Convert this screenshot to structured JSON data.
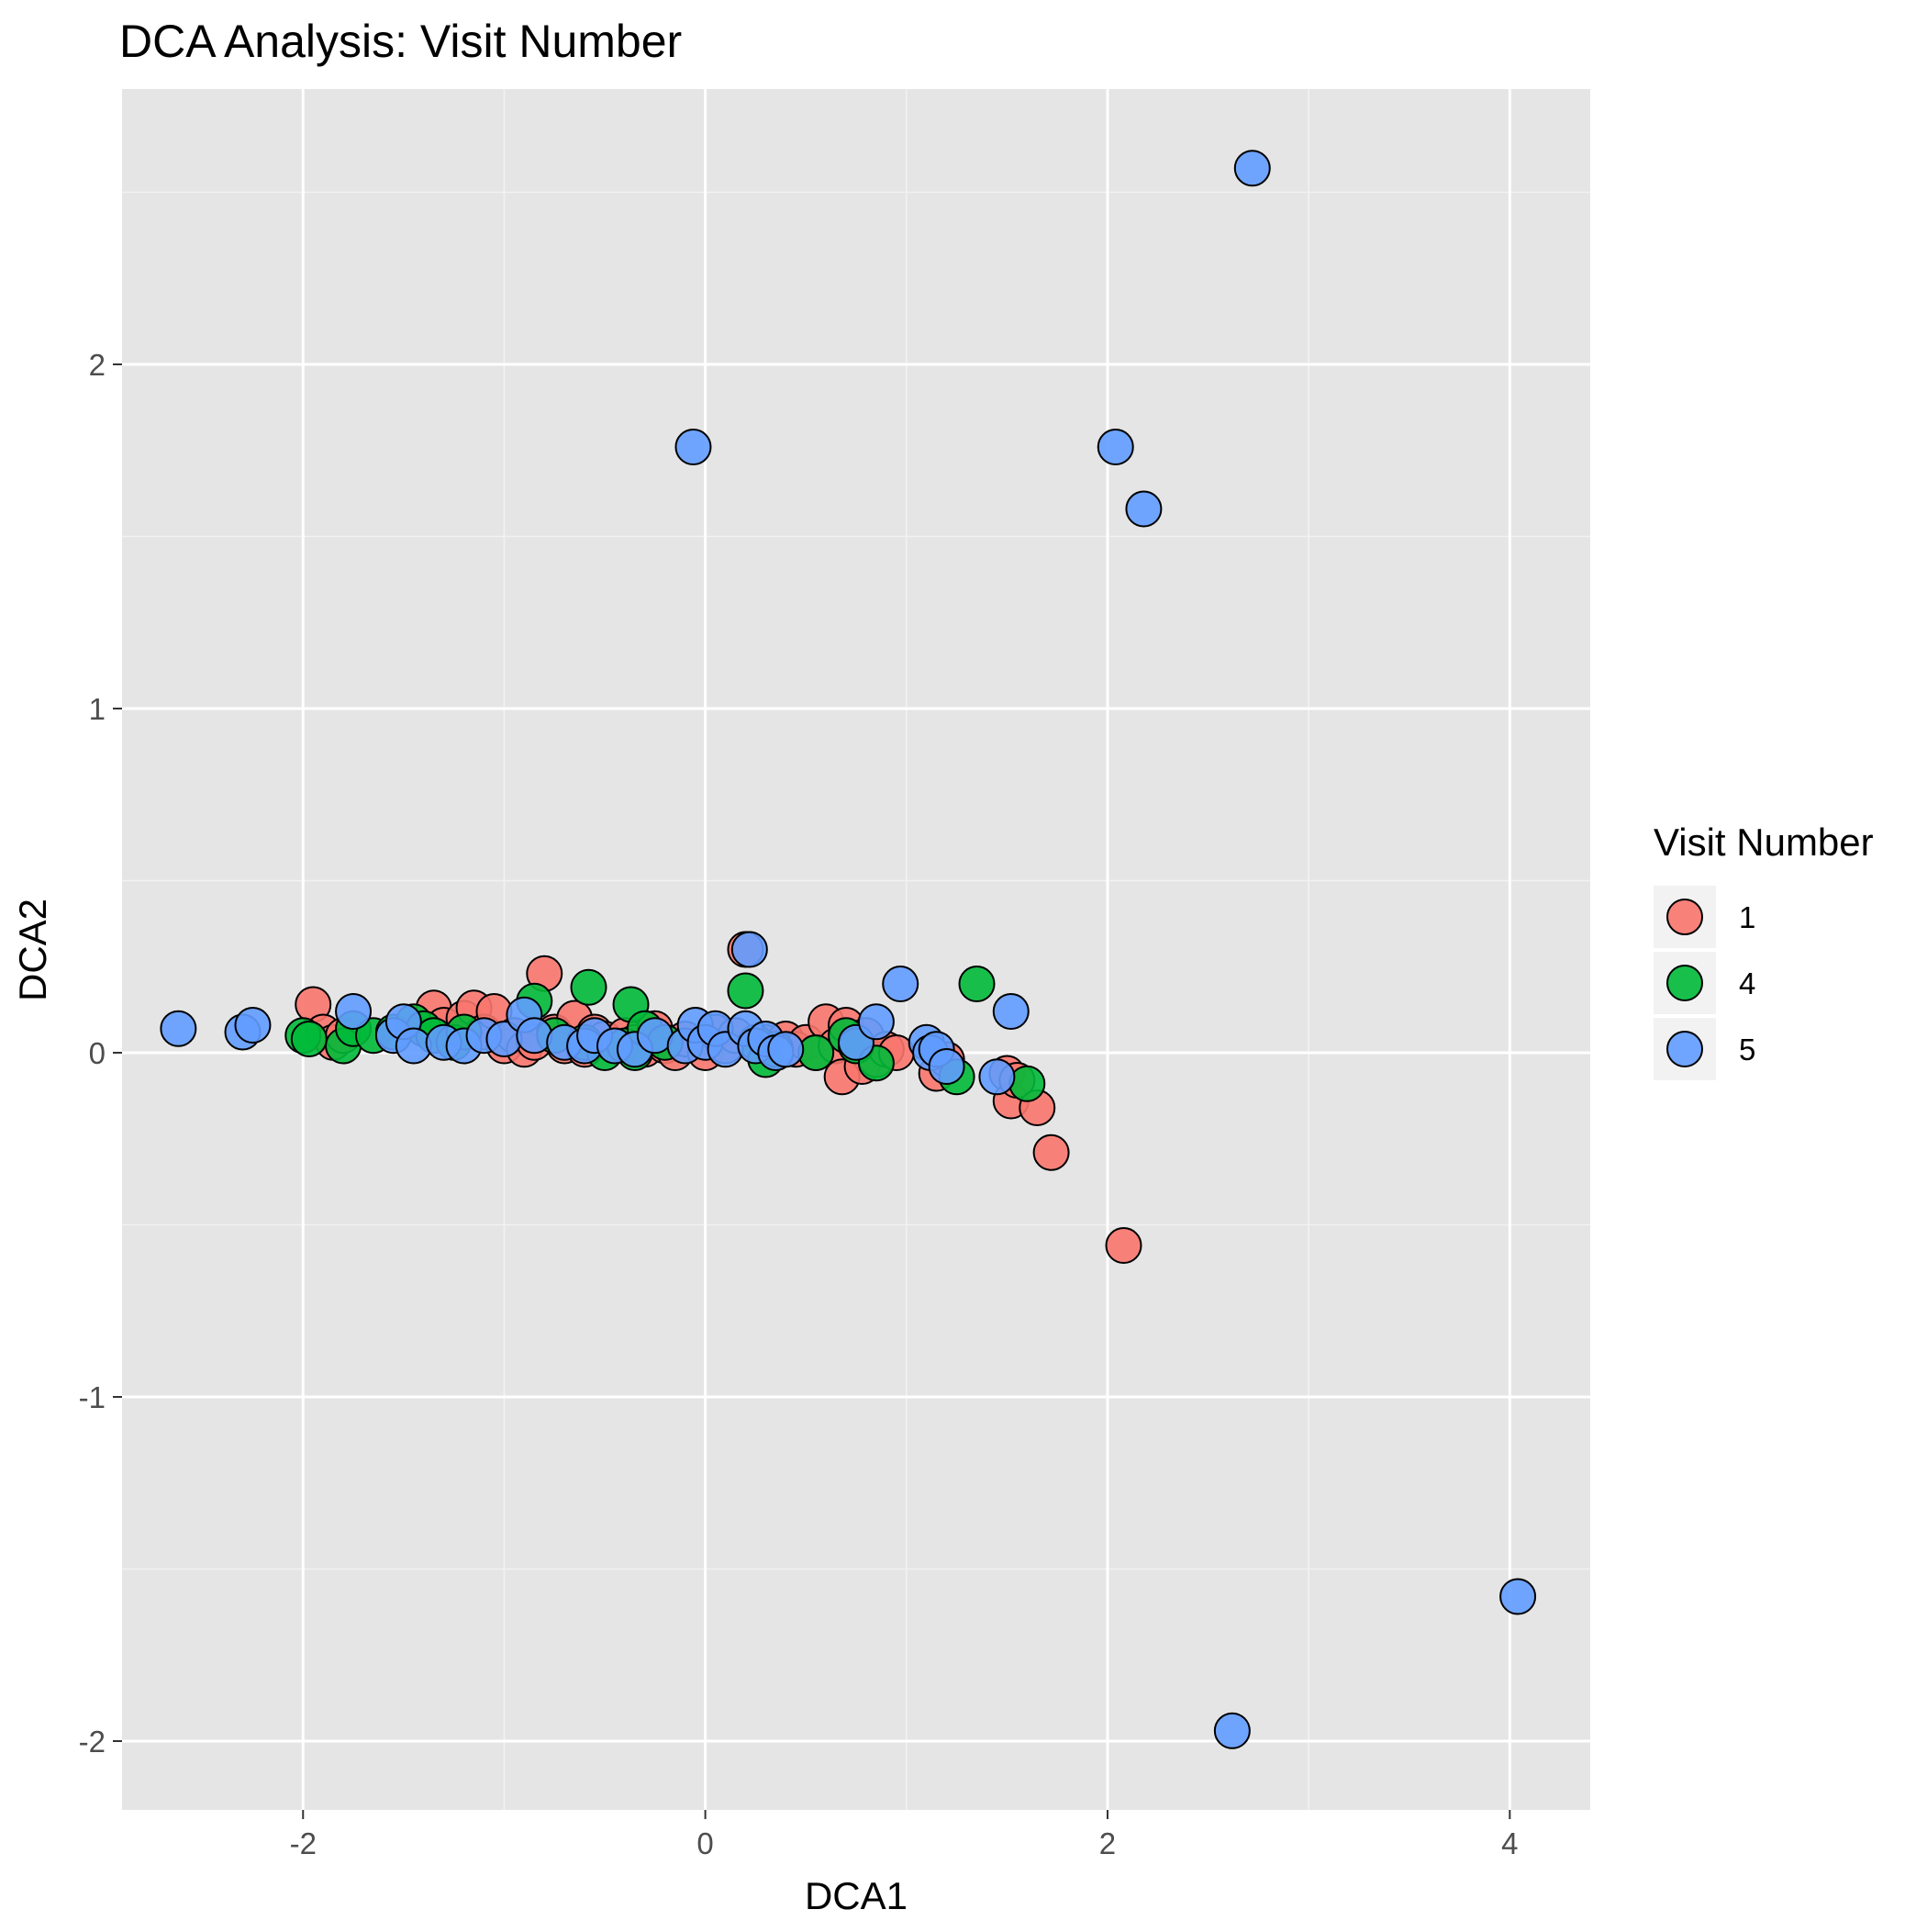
{
  "chart_data": {
    "type": "scatter",
    "title": "DCA Analysis: Visit Number",
    "xlabel": "DCA1",
    "ylabel": "DCA2",
    "xlim": [
      -2.9,
      4.4
    ],
    "ylim": [
      -2.2,
      2.8
    ],
    "x_ticks": [
      -2,
      0,
      2,
      4
    ],
    "x_tick_labels": [
      "-2",
      "0",
      "2",
      "4"
    ],
    "y_ticks": [
      -2,
      -1,
      0,
      1,
      2
    ],
    "y_tick_labels": [
      "-2",
      "-1",
      "0",
      "1",
      "2"
    ],
    "grid": true,
    "legend": {
      "title": "Visit Number",
      "position": "right"
    },
    "series": [
      {
        "name": "1",
        "color": "#F8766D",
        "points": [
          [
            -1.95,
            0.14
          ],
          [
            -1.9,
            0.06
          ],
          [
            -1.85,
            0.03
          ],
          [
            -1.8,
            0.05
          ],
          [
            -1.35,
            0.13
          ],
          [
            -1.3,
            0.08
          ],
          [
            -1.25,
            0.04
          ],
          [
            -1.2,
            0.1
          ],
          [
            -1.15,
            0.13
          ],
          [
            -1.1,
            0.06
          ],
          [
            -1.05,
            0.12
          ],
          [
            -1.0,
            0.02
          ],
          [
            -0.95,
            0.05
          ],
          [
            -0.9,
            0.01
          ],
          [
            -0.85,
            0.03
          ],
          [
            -0.8,
            0.23
          ],
          [
            -0.75,
            0.06
          ],
          [
            -0.7,
            0.02
          ],
          [
            -0.65,
            0.1
          ],
          [
            -0.6,
            0.01
          ],
          [
            -0.55,
            0.06
          ],
          [
            -0.5,
            0.04
          ],
          [
            -0.45,
            0.02
          ],
          [
            -0.4,
            0.05
          ],
          [
            -0.35,
            0.03
          ],
          [
            -0.3,
            0.01
          ],
          [
            -0.25,
            0.07
          ],
          [
            -0.2,
            0.02
          ],
          [
            -0.15,
            0.0
          ],
          [
            -0.1,
            0.04
          ],
          [
            0.0,
            0.0
          ],
          [
            0.05,
            0.06
          ],
          [
            0.1,
            0.02
          ],
          [
            0.15,
            0.05
          ],
          [
            0.2,
            0.3
          ],
          [
            0.3,
            0.03
          ],
          [
            0.35,
            0.0
          ],
          [
            0.4,
            0.04
          ],
          [
            0.45,
            0.01
          ],
          [
            0.5,
            0.03
          ],
          [
            0.55,
            0.0
          ],
          [
            0.6,
            0.09
          ],
          [
            0.65,
            0.02
          ],
          [
            0.68,
            -0.07
          ],
          [
            0.7,
            0.08
          ],
          [
            0.75,
            0.03
          ],
          [
            0.78,
            -0.04
          ],
          [
            0.8,
            0.05
          ],
          [
            0.85,
            -0.02
          ],
          [
            0.9,
            0.01
          ],
          [
            0.95,
            0.0
          ],
          [
            1.15,
            -0.06
          ],
          [
            1.2,
            -0.02
          ],
          [
            1.5,
            -0.06
          ],
          [
            1.52,
            -0.14
          ],
          [
            1.55,
            -0.08
          ],
          [
            1.65,
            -0.16
          ],
          [
            1.72,
            -0.29
          ],
          [
            2.08,
            -0.56
          ]
        ]
      },
      {
        "name": "4",
        "color": "#00BA38",
        "points": [
          [
            -2.0,
            0.05
          ],
          [
            -1.97,
            0.04
          ],
          [
            -1.8,
            0.02
          ],
          [
            -1.75,
            0.07
          ],
          [
            -1.65,
            0.05
          ],
          [
            -1.55,
            0.06
          ],
          [
            -1.45,
            0.09
          ],
          [
            -1.4,
            0.07
          ],
          [
            -1.35,
            0.05
          ],
          [
            -1.25,
            0.03
          ],
          [
            -1.2,
            0.06
          ],
          [
            -0.85,
            0.15
          ],
          [
            -0.75,
            0.05
          ],
          [
            -0.6,
            0.03
          ],
          [
            -0.58,
            0.19
          ],
          [
            -0.5,
            0.0
          ],
          [
            -0.4,
            0.02
          ],
          [
            -0.37,
            0.14
          ],
          [
            -0.35,
            0.0
          ],
          [
            -0.3,
            0.07
          ],
          [
            -0.2,
            0.03
          ],
          [
            0.2,
            0.18
          ],
          [
            0.25,
            0.03
          ],
          [
            0.3,
            -0.02
          ],
          [
            0.35,
            0.01
          ],
          [
            0.55,
            0.0
          ],
          [
            0.7,
            0.05
          ],
          [
            0.75,
            0.02
          ],
          [
            0.85,
            -0.03
          ],
          [
            1.25,
            -0.07
          ],
          [
            1.35,
            0.2
          ],
          [
            1.6,
            -0.09
          ]
        ]
      },
      {
        "name": "5",
        "color": "#619CFF",
        "points": [
          [
            -2.62,
            0.07
          ],
          [
            -2.3,
            0.06
          ],
          [
            -2.25,
            0.08
          ],
          [
            -1.75,
            0.12
          ],
          [
            -1.55,
            0.05
          ],
          [
            -1.5,
            0.09
          ],
          [
            -1.45,
            0.02
          ],
          [
            -1.3,
            0.03
          ],
          [
            -1.2,
            0.02
          ],
          [
            -1.1,
            0.05
          ],
          [
            -1.0,
            0.04
          ],
          [
            -0.9,
            0.11
          ],
          [
            -0.85,
            0.05
          ],
          [
            -0.7,
            0.03
          ],
          [
            -0.6,
            0.02
          ],
          [
            -0.55,
            0.05
          ],
          [
            -0.45,
            0.02
          ],
          [
            -0.35,
            0.01
          ],
          [
            -0.25,
            0.05
          ],
          [
            -0.1,
            0.02
          ],
          [
            -0.05,
            0.08
          ],
          [
            0.0,
            0.03
          ],
          [
            0.05,
            0.07
          ],
          [
            0.1,
            0.01
          ],
          [
            0.2,
            0.07
          ],
          [
            0.22,
            0.3
          ],
          [
            0.25,
            0.02
          ],
          [
            0.3,
            0.04
          ],
          [
            0.35,
            0.0
          ],
          [
            0.4,
            0.01
          ],
          [
            0.75,
            0.03
          ],
          [
            0.85,
            0.09
          ],
          [
            0.97,
            0.2
          ],
          [
            1.1,
            0.03
          ],
          [
            1.12,
            0.0
          ],
          [
            1.15,
            0.01
          ],
          [
            1.2,
            -0.04
          ],
          [
            1.45,
            -0.07
          ],
          [
            1.52,
            0.12
          ],
          [
            -0.06,
            1.76
          ],
          [
            2.04,
            1.76
          ],
          [
            2.18,
            1.58
          ],
          [
            2.72,
            2.57
          ],
          [
            4.04,
            -1.58
          ],
          [
            2.62,
            -1.97
          ]
        ]
      }
    ]
  }
}
